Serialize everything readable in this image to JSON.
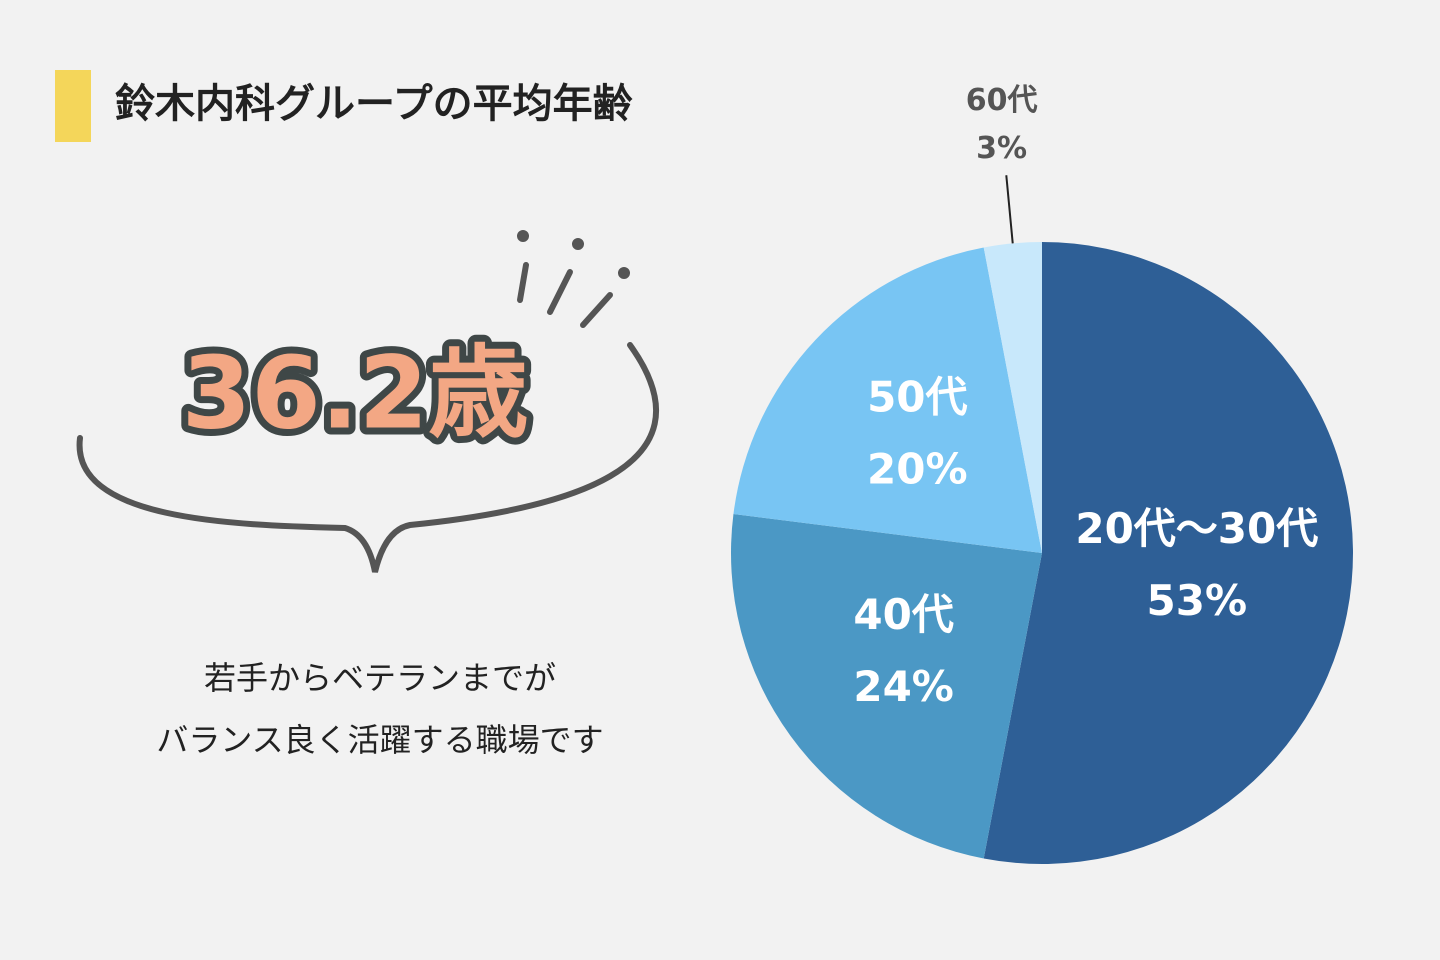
{
  "chart_data": {
    "type": "pie",
    "title": "鈴木内科グループの平均年齢",
    "categories": [
      "20代～30代",
      "40代",
      "50代",
      "60代"
    ],
    "values": [
      53,
      24,
      20,
      3
    ],
    "value_labels": [
      "53%",
      "24%",
      "20%",
      "3%"
    ],
    "colors": [
      "#2e5f96",
      "#4b98c5",
      "#78c5f3",
      "#c8e8fb"
    ]
  },
  "callout": {
    "headline": "36.2歳",
    "caption": [
      "若手からベテランまでが",
      "バランス良く活躍する職場です"
    ]
  }
}
